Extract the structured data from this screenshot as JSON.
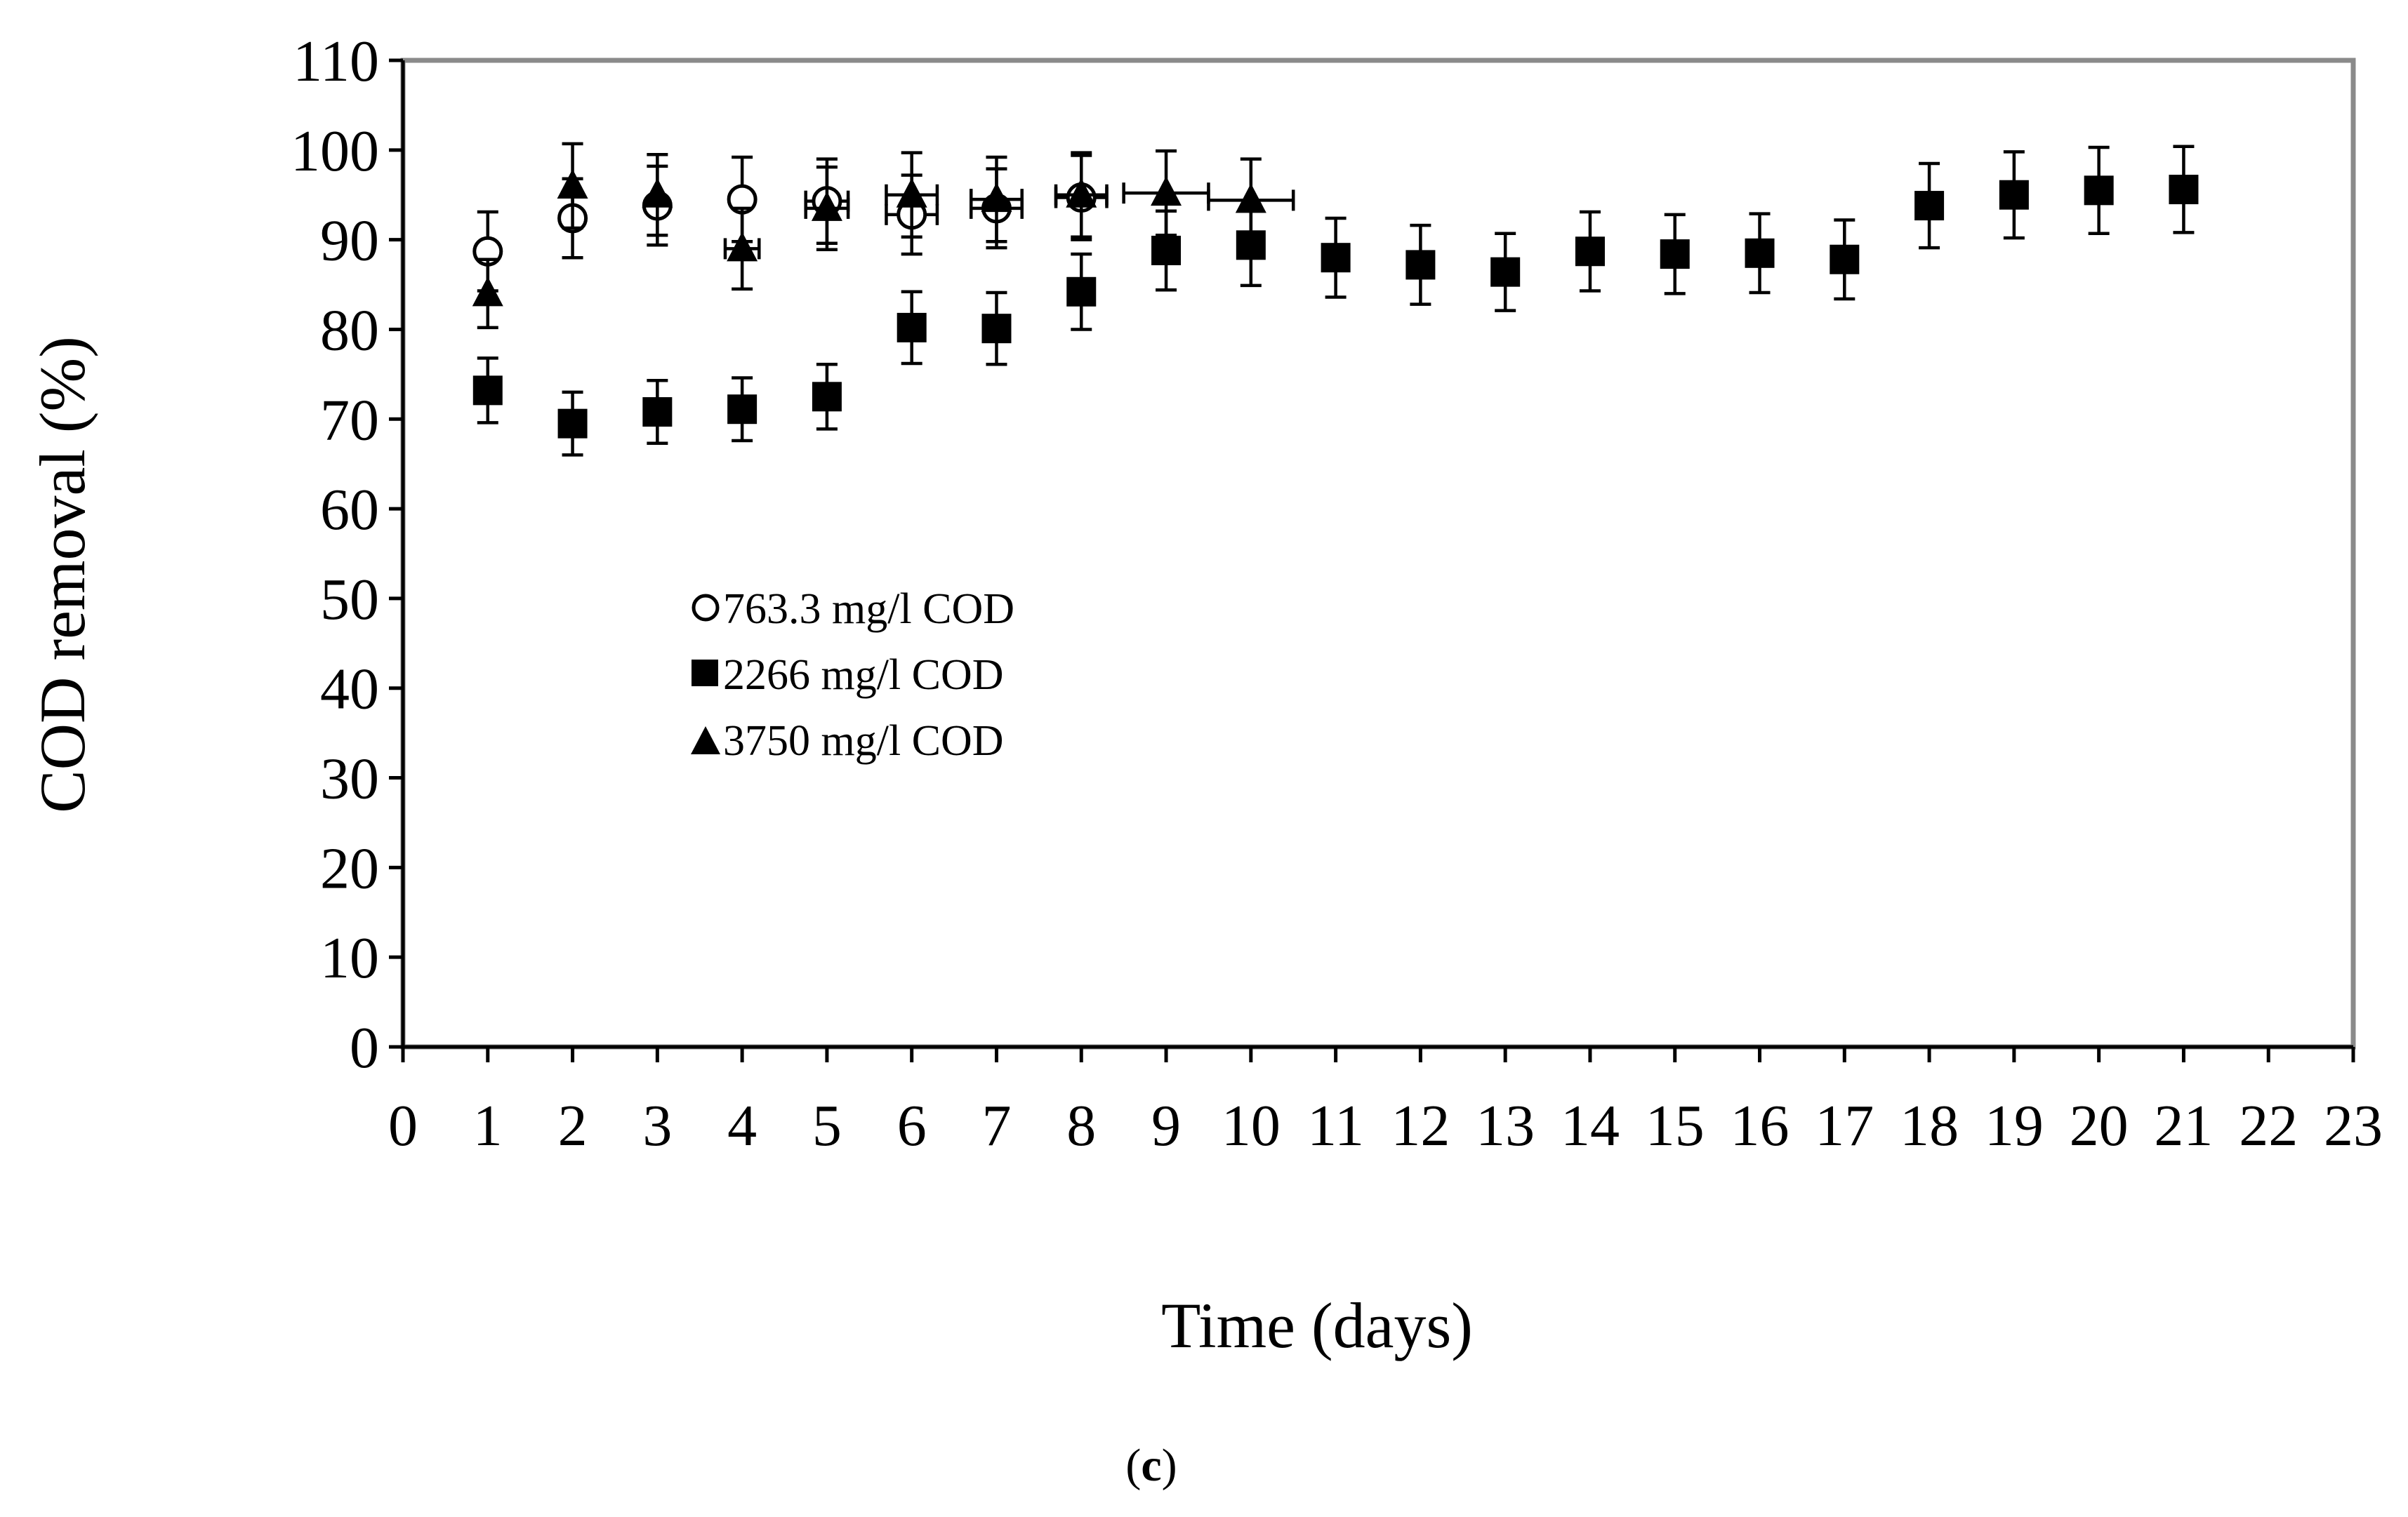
{
  "chart_data": {
    "type": "scatter",
    "title": "",
    "xlabel": "Time (days)",
    "ylabel": "COD removal (%)",
    "panel_label": "(c)",
    "panel_label_parts": {
      "open": "(",
      "letter": "c",
      "close": ")"
    },
    "xlim": [
      0,
      23
    ],
    "ylim": [
      0,
      110
    ],
    "x_ticks": [
      0,
      1,
      2,
      3,
      4,
      5,
      6,
      7,
      8,
      9,
      10,
      11,
      12,
      13,
      14,
      15,
      16,
      17,
      18,
      19,
      20,
      21,
      22,
      23
    ],
    "y_ticks": [
      0,
      10,
      20,
      30,
      40,
      50,
      60,
      70,
      80,
      90,
      100,
      110
    ],
    "grid": false,
    "legend_position": "center-left",
    "series": [
      {
        "name": "763.3 mg/l COD",
        "marker": "circle-open",
        "x": [
          1,
          2,
          3,
          4,
          5,
          6,
          7,
          8
        ],
        "y": [
          88.7,
          92.4,
          93.8,
          94.5,
          94.3,
          92.8,
          93.5,
          94.7
        ],
        "yerr": [
          4.4,
          4.4,
          4.4,
          4.7,
          4.7,
          4.4,
          4.4,
          4.7
        ],
        "xerr": [
          0,
          0,
          0,
          0,
          0.25,
          0.3,
          0.3,
          0.3
        ]
      },
      {
        "name": "2266 mg/l COD",
        "marker": "square-filled",
        "x": [
          1,
          2,
          3,
          4,
          5,
          6,
          7,
          8,
          9,
          10,
          11,
          12,
          13,
          14,
          15,
          16,
          17,
          18,
          19,
          20,
          21
        ],
        "y": [
          73.2,
          69.5,
          70.8,
          71.1,
          72.5,
          80.2,
          80.1,
          84.2,
          88.8,
          89.4,
          88,
          87.2,
          86.4,
          88.7,
          88.4,
          88.5,
          87.8,
          93.8,
          95,
          95.5,
          95.6
        ],
        "yerr": [
          3.6,
          3.5,
          3.5,
          3.5,
          3.6,
          4,
          4,
          4.2,
          4.4,
          4.5,
          4.4,
          4.4,
          4.3,
          4.4,
          4.4,
          4.4,
          4.4,
          4.7,
          4.8,
          4.8,
          4.8
        ],
        "xerr": []
      },
      {
        "name": "3750 mg/l COD",
        "marker": "triangle-filled",
        "x": [
          1,
          2,
          3,
          4,
          5,
          6,
          7,
          8,
          9,
          10
        ],
        "y": [
          84,
          96,
          95,
          89,
          93.5,
          95,
          94.5,
          95,
          95.2,
          94.4
        ],
        "yerr": [
          3.8,
          4.7,
          4.5,
          4.5,
          4.6,
          4.7,
          4.7,
          4.7,
          4.7,
          4.6
        ],
        "xerr": [
          0,
          0,
          0,
          0.2,
          0.25,
          0.3,
          0.3,
          0.3,
          0.5,
          0.5
        ]
      }
    ]
  }
}
